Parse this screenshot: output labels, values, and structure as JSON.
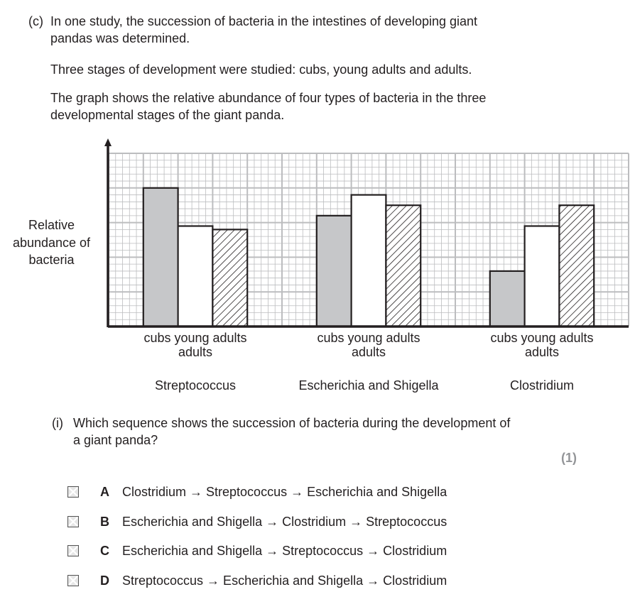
{
  "question": {
    "part": "(c)",
    "intro_lines": [
      "In one study, the succession of bacteria in the intestines of developing giant",
      "pandas was determined."
    ],
    "stages_text": "Three stages of development were studied: cubs, young adults and adults.",
    "graph_text_lines": [
      "The graph shows the relative abundance of four types of bacteria in the three",
      "developmental stages of the giant panda."
    ]
  },
  "chart_data": {
    "type": "bar",
    "ylabel_lines": [
      "Relative",
      "abundance of",
      "bacteria"
    ],
    "categories": [
      "Streptococcus",
      "Escherichia and Shigella",
      "Clostridium"
    ],
    "stage_labels": {
      "line1": "cubs young adults",
      "line2": "adults"
    },
    "series": [
      {
        "stage": "cubs",
        "fill": "gray",
        "values": [
          20,
          16,
          8
        ]
      },
      {
        "stage": "young adults",
        "fill": "white",
        "values": [
          14.5,
          19,
          14.5
        ]
      },
      {
        "stage": "adults",
        "fill": "hatched",
        "values": [
          14,
          17.5,
          17.5
        ]
      }
    ],
    "ylim": [
      0,
      25
    ],
    "grid": true,
    "colors": {
      "cubs": "#c6c7c9",
      "grid": "#bcbdbf",
      "axis": "#231f20"
    }
  },
  "subquestion": {
    "number": "(i)",
    "text_lines": [
      "Which sequence shows the succession of bacteria during the development of",
      "a giant panda?"
    ],
    "marks": "(1)"
  },
  "options": [
    {
      "letter": "A",
      "text": "Clostridium → Streptococcus → Escherichia and Shigella"
    },
    {
      "letter": "B",
      "text": "Escherichia and Shigella → Clostridium → Streptococcus"
    },
    {
      "letter": "C",
      "text": "Escherichia and Shigella → Streptococcus → Clostridium"
    },
    {
      "letter": "D",
      "text": "Streptococcus → Escherichia and Shigella → Clostridium"
    }
  ]
}
